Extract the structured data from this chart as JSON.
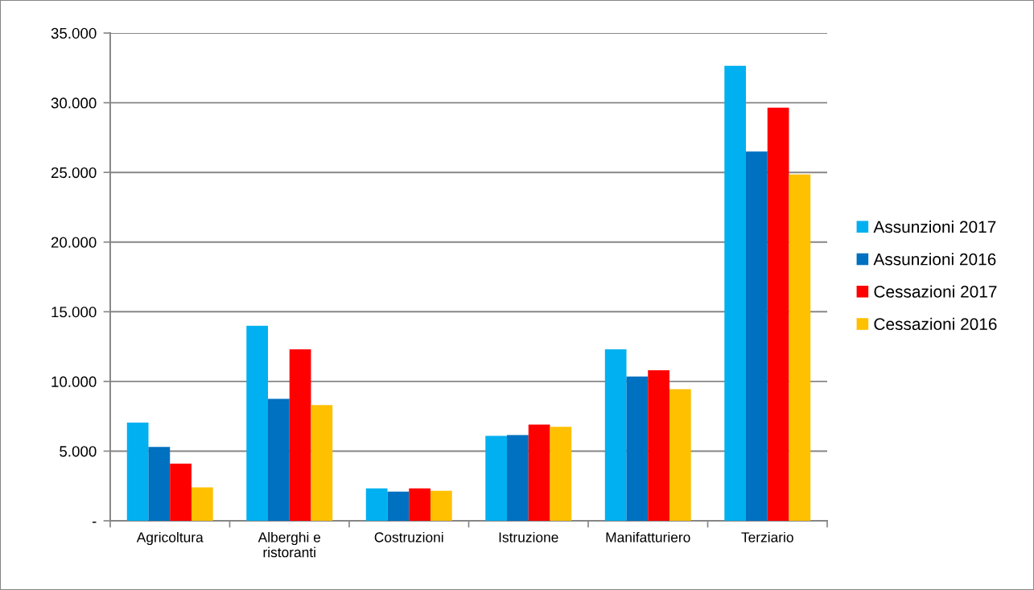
{
  "chart_data": {
    "type": "bar",
    "categories": [
      "Agricoltura",
      "Alberghi e\nristoranti",
      "Costruzioni",
      "Istruzione",
      "Manifatturiero",
      "Terziario"
    ],
    "series": [
      {
        "name": "Assunzioni 2017",
        "color": "#00b0f0",
        "values": [
          7050,
          14000,
          2330,
          6100,
          12300,
          32650
        ]
      },
      {
        "name": "Assunzioni 2016",
        "color": "#0070c0",
        "values": [
          5300,
          8750,
          2100,
          6150,
          10350,
          26500
        ]
      },
      {
        "name": "Cessazioni 2017",
        "color": "#ff0000",
        "values": [
          4100,
          12300,
          2330,
          6900,
          10800,
          29650
        ]
      },
      {
        "name": "Cessazioni 2016",
        "color": "#ffc000",
        "values": [
          2400,
          8300,
          2150,
          6750,
          9450,
          24850
        ]
      }
    ],
    "ylim": [
      0,
      35000
    ],
    "yticks": [
      {
        "value": 0,
        "label": "-"
      },
      {
        "value": 5000,
        "label": "5.000"
      },
      {
        "value": 10000,
        "label": "10.000"
      },
      {
        "value": 15000,
        "label": "15.000"
      },
      {
        "value": 20000,
        "label": "20.000"
      },
      {
        "value": 25000,
        "label": "25.000"
      },
      {
        "value": 30000,
        "label": "30.000"
      },
      {
        "value": 35000,
        "label": "35.000"
      }
    ],
    "grid": "y",
    "legend": "right"
  }
}
